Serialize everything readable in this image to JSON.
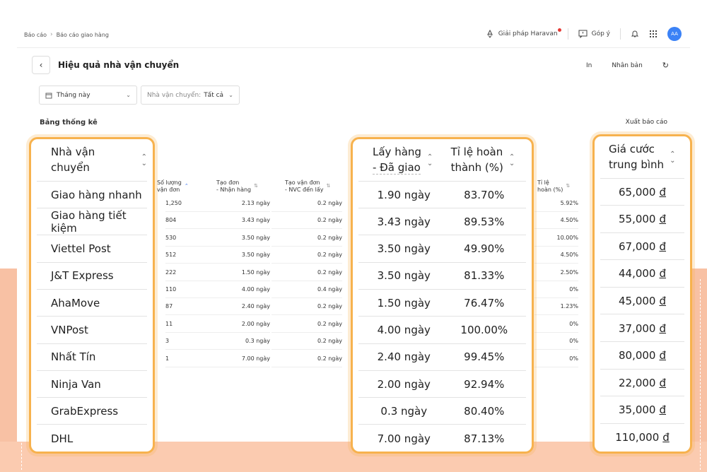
{
  "breadcrumb": {
    "root": "Báo cáo",
    "current": "Báo cáo giao hàng"
  },
  "topbar": {
    "solutions": "Giải pháp Haravan",
    "feedback": "Góp ý",
    "avatar": "AA"
  },
  "page": {
    "title": "Hiệu quả nhà vận chuyển",
    "print": "In",
    "duplicate": "Nhân bản"
  },
  "filters": {
    "date": "Tháng này",
    "carrier_label": "Nhà vận chuyển:",
    "carrier_value": "Tất cả"
  },
  "table": {
    "section_title": "Bảng thống kê",
    "export": "Xuất báo cáo",
    "headers": {
      "carrier": "Nhà vận chuyển",
      "orders_l1": "Số lượng",
      "orders_l2": "vận đơn",
      "create_receive_l1": "Tạo đơn",
      "create_receive_l2": "- Nhận hàng",
      "create_pickup_l1": "Tạo vận đơn",
      "create_pickup_l2": "- NVC đến lấy",
      "pickup_deliver_l1": "Lấy hàng",
      "pickup_deliver_l2": "- Đã giao",
      "completion_l1": "Tỉ lệ hoàn",
      "completion_l2": "thành (%)",
      "return_l1": "Tỉ lệ",
      "return_l2": "hoàn (%)",
      "avg_fee_l1": "Giá cước",
      "avg_fee_l2": "trung bình"
    },
    "rows": [
      {
        "carrier": "Giao hàng nhanh",
        "orders": "1,250",
        "create_receive": "2.13 ngày",
        "create_pickup": "0.2 ngày",
        "pickup_deliver": "1.90 ngày",
        "completion": "83.70%",
        "return_rate": "5.92%",
        "avg_fee": "65,000",
        "currency": "đ"
      },
      {
        "carrier": "Giao hàng tiết kiệm",
        "orders": "804",
        "create_receive": "3.43 ngày",
        "create_pickup": "0.2 ngày",
        "pickup_deliver": "3.43 ngày",
        "completion": "89.53%",
        "return_rate": "4.50%",
        "avg_fee": "55,000",
        "currency": "đ"
      },
      {
        "carrier": "Viettel Post",
        "orders": "530",
        "create_receive": "3.50 ngày",
        "create_pickup": "0.2 ngày",
        "pickup_deliver": "3.50 ngày",
        "completion": "49.90%",
        "return_rate": "10.00%",
        "avg_fee": "67,000",
        "currency": "đ"
      },
      {
        "carrier": "J&T Express",
        "orders": "512",
        "create_receive": "3.50 ngày",
        "create_pickup": "0.2 ngày",
        "pickup_deliver": "3.50 ngày",
        "completion": "81.33%",
        "return_rate": "4.50%",
        "avg_fee": "44,000",
        "currency": "đ"
      },
      {
        "carrier": "AhaMove",
        "orders": "222",
        "create_receive": "1.50 ngày",
        "create_pickup": "0.2 ngày",
        "pickup_deliver": "1.50 ngày",
        "completion": "76.47%",
        "return_rate": "2.50%",
        "avg_fee": "45,000",
        "currency": "đ"
      },
      {
        "carrier": "VNPost",
        "orders": "110",
        "create_receive": "4.00 ngày",
        "create_pickup": "0.4 ngày",
        "pickup_deliver": "4.00 ngày",
        "completion": "100.00%",
        "return_rate": "0%",
        "avg_fee": "37,000",
        "currency": "đ"
      },
      {
        "carrier": "Nhất Tín",
        "orders": "87",
        "create_receive": "2.40 ngày",
        "create_pickup": "0.2 ngày",
        "pickup_deliver": "2.40 ngày",
        "completion": "99.45%",
        "return_rate": "1.23%",
        "avg_fee": "80,000",
        "currency": "đ"
      },
      {
        "carrier": "Ninja Van",
        "orders": "11",
        "create_receive": "2.00 ngày",
        "create_pickup": "0.2 ngày",
        "pickup_deliver": "2.00 ngày",
        "completion": "92.94%",
        "return_rate": "0%",
        "avg_fee": "22,000",
        "currency": "đ"
      },
      {
        "carrier": "GrabExpress",
        "orders": "3",
        "create_receive": "0.3 ngày",
        "create_pickup": "0.2 ngày",
        "pickup_deliver": "0.3 ngày",
        "completion": "80.40%",
        "return_rate": "0%",
        "avg_fee": "35,000",
        "currency": "đ"
      },
      {
        "carrier": "DHL",
        "orders": "1",
        "create_receive": "7.00 ngày",
        "create_pickup": "0.2 ngày",
        "pickup_deliver": "7.00 ngày",
        "completion": "87.13%",
        "return_rate": "0%",
        "avg_fee": "110,000",
        "currency": "đ"
      }
    ]
  },
  "colors": {
    "highlight_border": "#f7b24e",
    "peach": "#f8c1a4",
    "avatar": "#3b82f6",
    "notify_dot": "#e53935"
  },
  "icons": [
    "chevron-right-icon",
    "rocket-icon",
    "feedback-icon",
    "bell-icon",
    "apps-grid-icon",
    "back-arrow-icon",
    "refresh-icon",
    "calendar-icon",
    "chevron-down-icon",
    "sort-icon"
  ]
}
